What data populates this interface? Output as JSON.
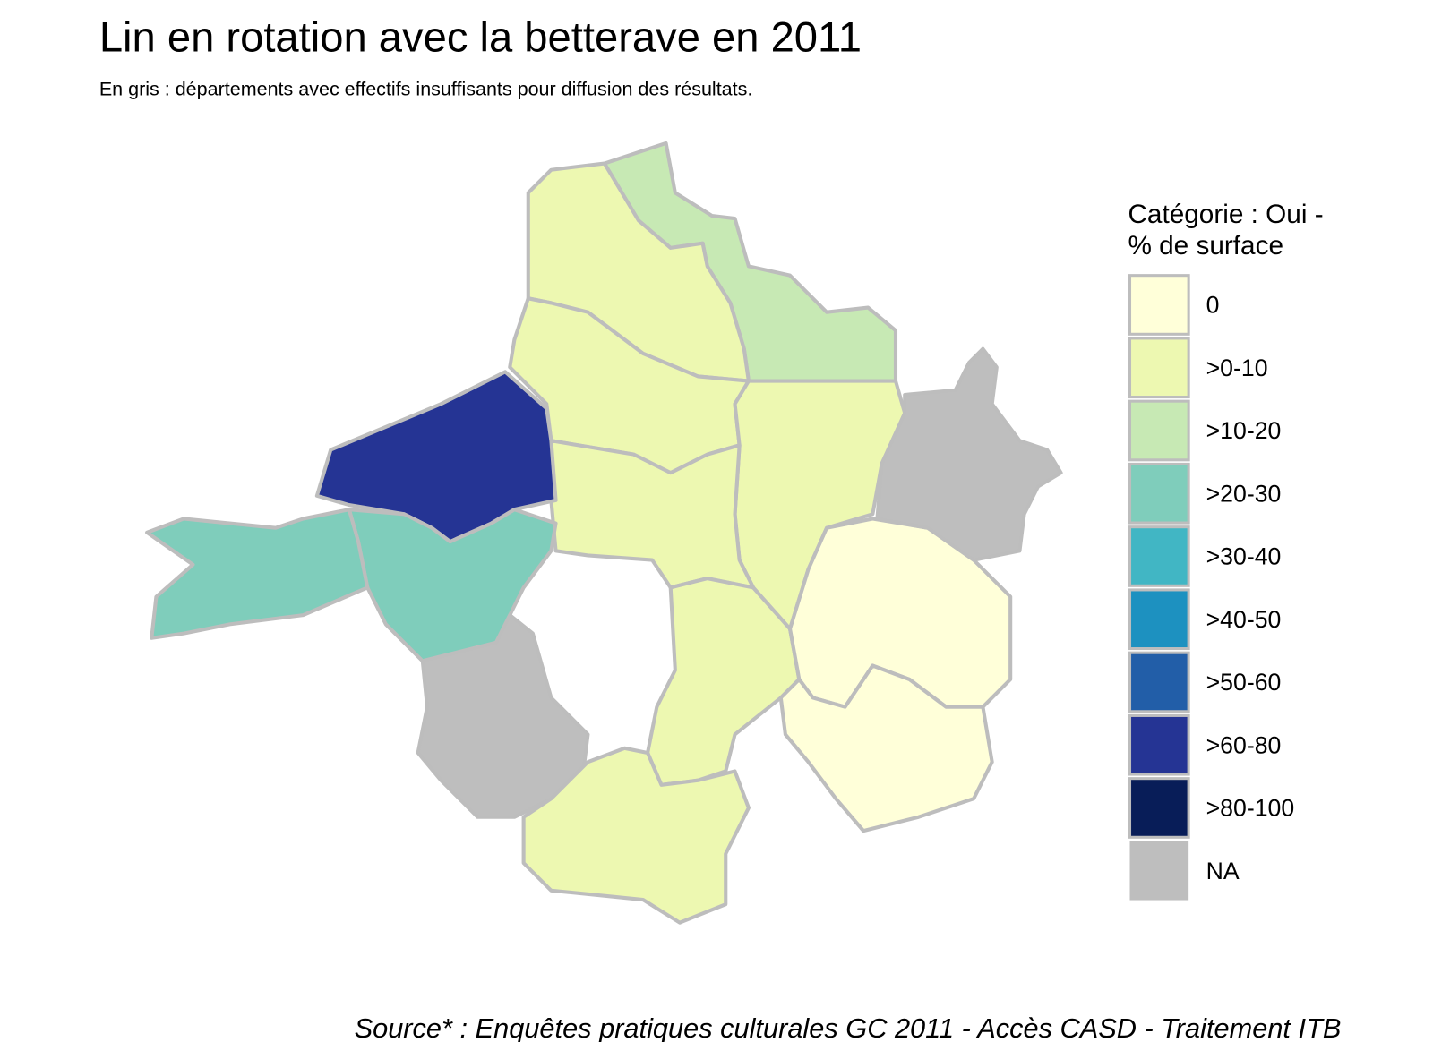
{
  "title": "Lin en rotation avec la betterave en 2011",
  "subtitle": "En gris : départements avec effectifs insuffisants pour diffusion des résultats.",
  "legend": {
    "title": [
      "Catégorie : Oui -",
      "% de surface"
    ],
    "items": [
      {
        "label": "0",
        "color": "#ffffd9"
      },
      {
        "label": ">0-10",
        "color": "#edf8b1"
      },
      {
        "label": ">10-20",
        "color": "#c7e9b4"
      },
      {
        "label": ">20-30",
        "color": "#7fcdbb"
      },
      {
        "label": ">30-40",
        "color": "#41b6c4"
      },
      {
        "label": ">40-50",
        "color": "#1d91c0"
      },
      {
        "label": ">50-60",
        "color": "#225ea8"
      },
      {
        "label": ">60-80",
        "color": "#253494"
      },
      {
        "label": ">80-100",
        "color": "#081d58"
      },
      {
        "label": "NA",
        "color": "#bebebe"
      }
    ]
  },
  "source": "Source* : Enquêtes pratiques culturales GC 2011 - Accès CASD - Traitement ITB"
}
